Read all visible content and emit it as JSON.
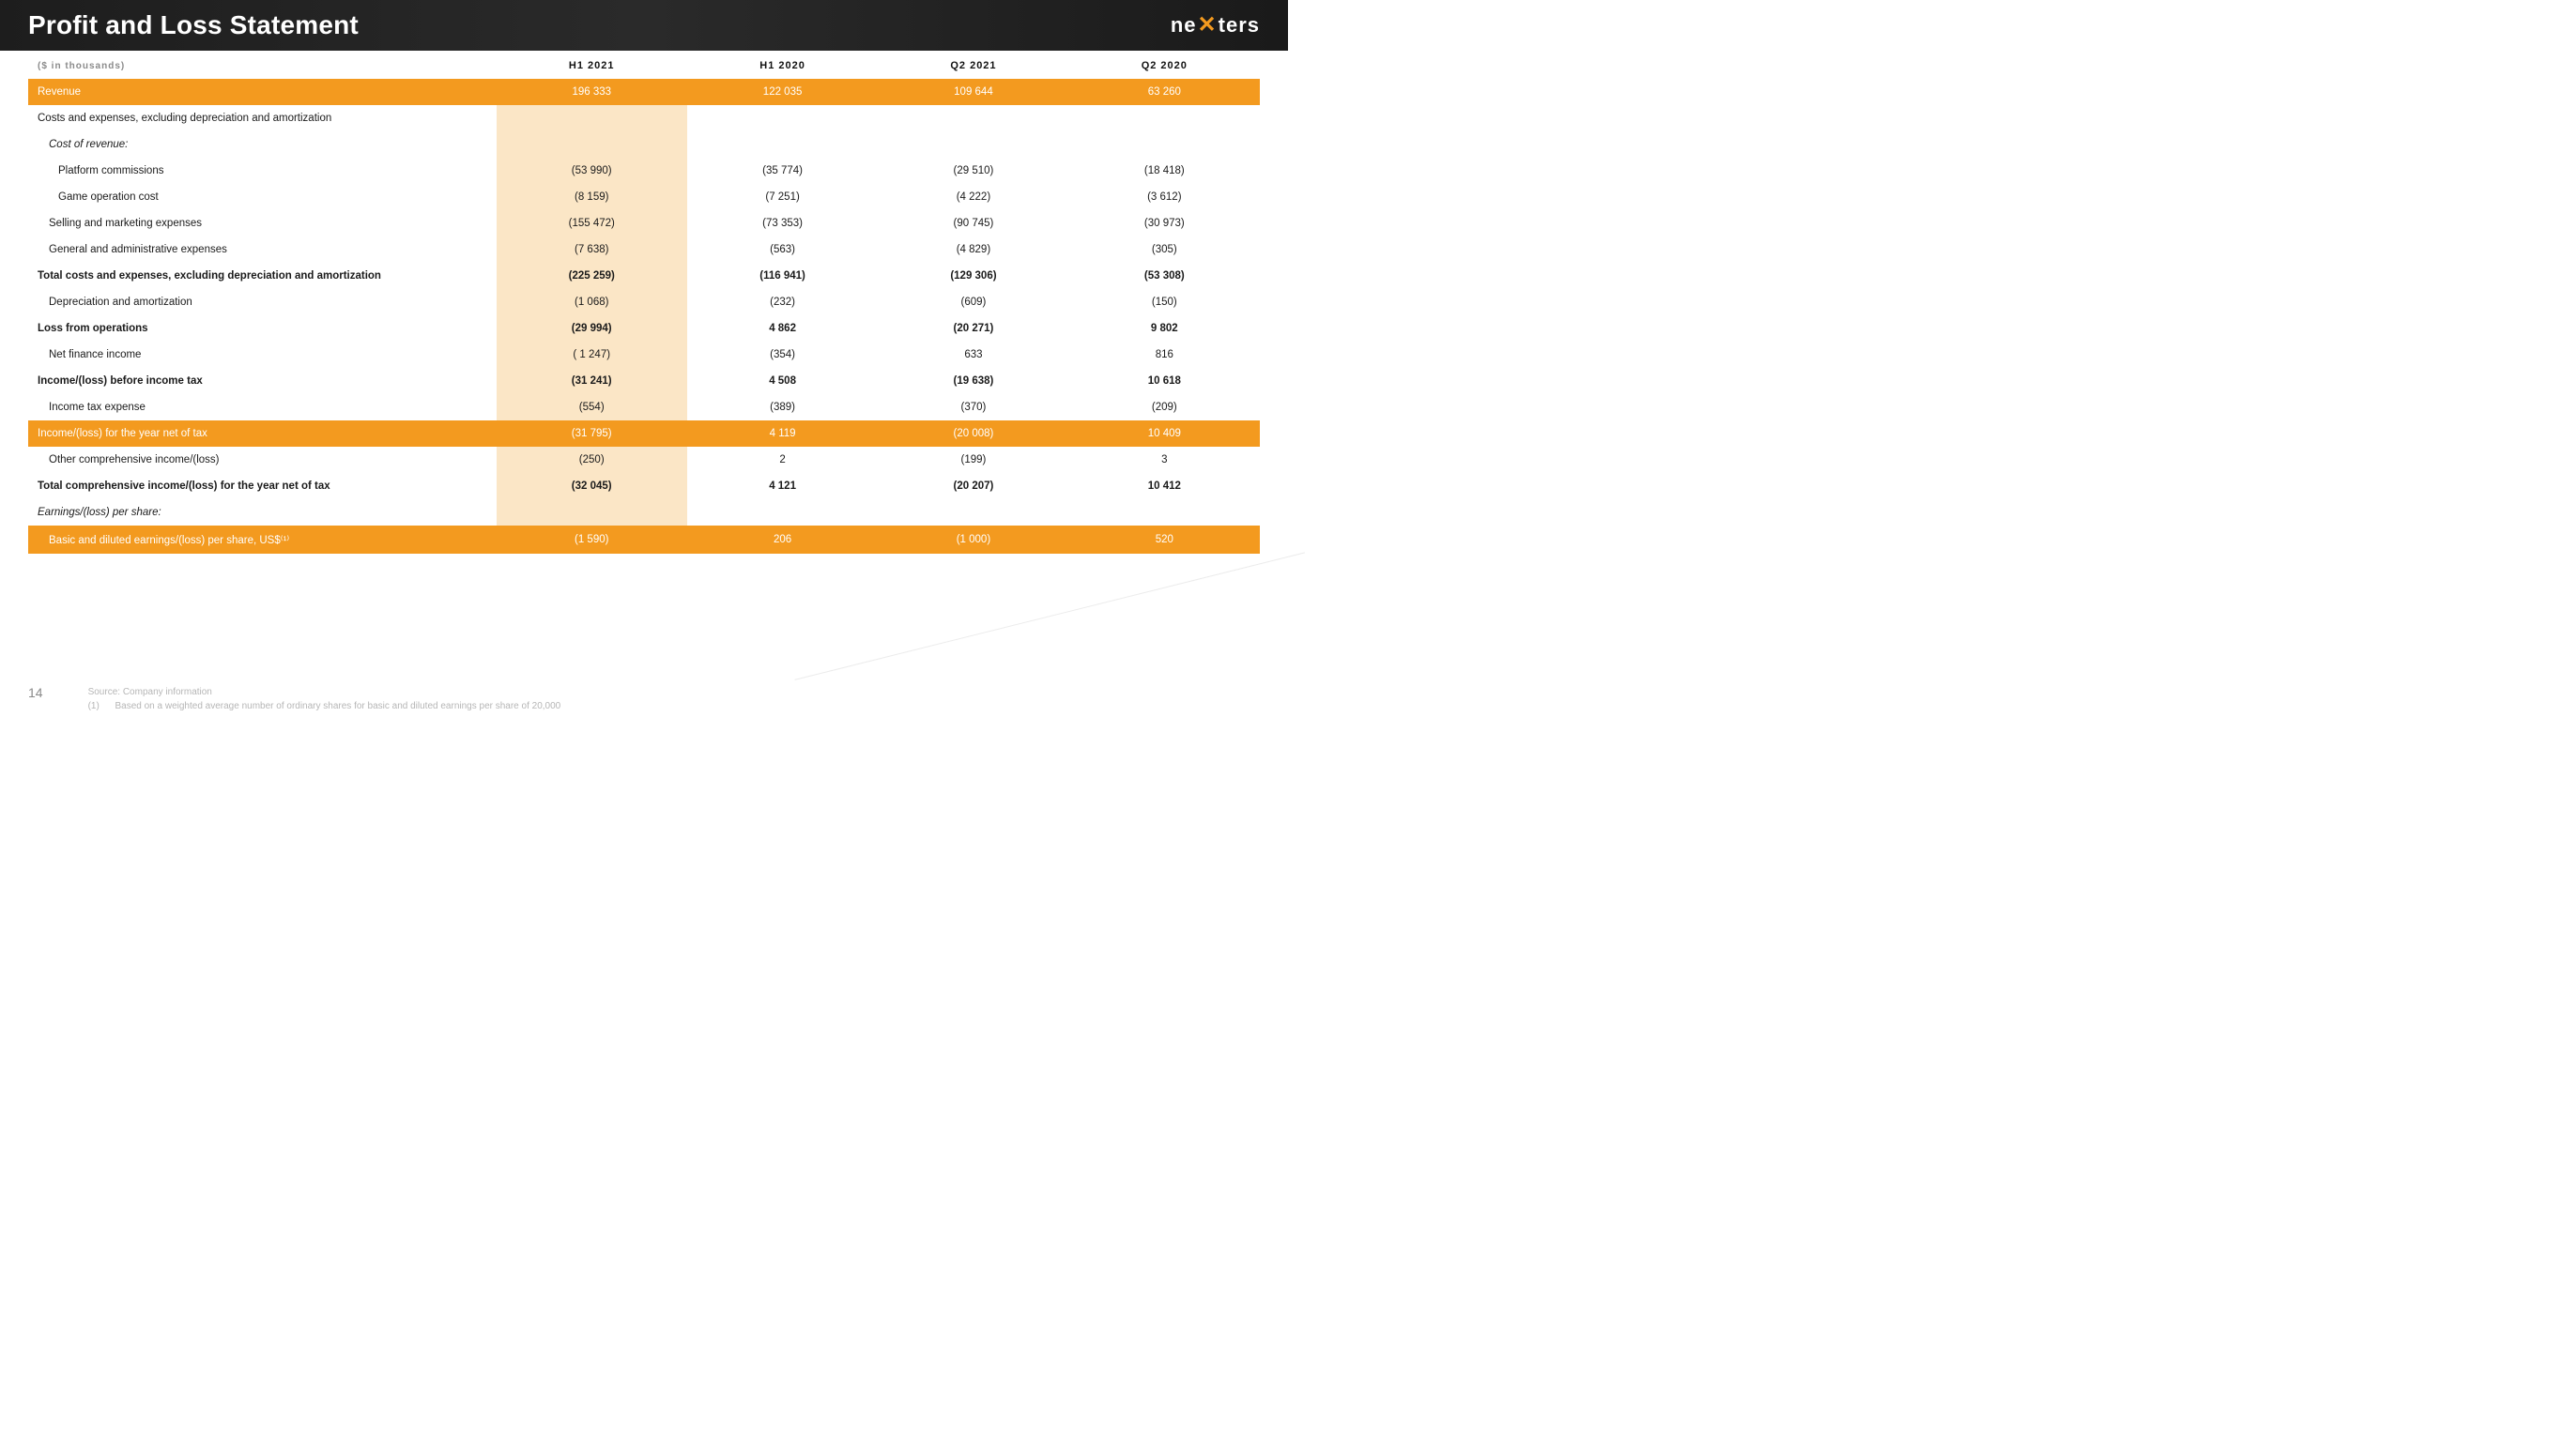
{
  "header": {
    "title": "Profit and Loss Statement",
    "logo_pre": "ne",
    "logo_x": "✕",
    "logo_post": "ters"
  },
  "units_label": "($ in thousands)",
  "columns": [
    "H1 2021",
    "H1 2020",
    "Q2 2021",
    "Q2 2020"
  ],
  "rows": [
    {
      "label": "Revenue",
      "v": [
        "196 333",
        "122 035",
        "109 644",
        "63 260"
      ],
      "style": "hl-orange"
    },
    {
      "label": "Costs and expenses, excluding depreciation and amortization",
      "v": [
        "",
        "",
        "",
        ""
      ],
      "style": "plain"
    },
    {
      "label": "Cost of revenue:",
      "v": [
        "",
        "",
        "",
        ""
      ],
      "style": "italic indent1"
    },
    {
      "label": "Platform commissions",
      "v": [
        "(53 990)",
        "(35 774)",
        "(29 510)",
        "(18 418)"
      ],
      "style": "indent2"
    },
    {
      "label": "Game operation cost",
      "v": [
        "(8 159)",
        "(7 251)",
        "(4 222)",
        "(3 612)"
      ],
      "style": "indent2"
    },
    {
      "label": "Selling and marketing expenses",
      "v": [
        "(155 472)",
        "(73 353)",
        "(90 745)",
        "(30 973)"
      ],
      "style": "indent1"
    },
    {
      "label": "General and administrative expenses",
      "v": [
        "(7 638)",
        "(563)",
        "(4 829)",
        "(305)"
      ],
      "style": "indent1"
    },
    {
      "label": "Total costs and expenses, excluding depreciation and amortization",
      "v": [
        "(225 259)",
        "(116 941)",
        "(129 306)",
        "(53 308)"
      ],
      "style": "bold"
    },
    {
      "label": "Depreciation and amortization",
      "v": [
        "(1 068)",
        "(232)",
        "(609)",
        "(150)"
      ],
      "style": "indent1"
    },
    {
      "label": "Loss from operations",
      "v": [
        "(29 994)",
        "4 862",
        "(20 271)",
        "9 802"
      ],
      "style": "bold"
    },
    {
      "label": "Net finance income",
      "v": [
        "( 1 247)",
        "(354)",
        "633",
        "816"
      ],
      "style": "indent1"
    },
    {
      "label": "Income/(loss) before income tax",
      "v": [
        "(31 241)",
        "4 508",
        "(19 638)",
        "10 618"
      ],
      "style": "bold"
    },
    {
      "label": "Income tax expense",
      "v": [
        "(554)",
        "(389)",
        "(370)",
        "(209)"
      ],
      "style": "indent1"
    },
    {
      "label": "Income/(loss) for the year net of tax",
      "v": [
        "(31 795)",
        "4 119",
        "(20 008)",
        "10 409"
      ],
      "style": "hl-orange"
    },
    {
      "label": "Other comprehensive income/(loss)",
      "v": [
        "(250)",
        "2",
        "(199)",
        "3"
      ],
      "style": "indent1"
    },
    {
      "label": "Total comprehensive income/(loss) for the year net of tax",
      "v": [
        "(32 045)",
        "4 121",
        "(20 207)",
        "10 412"
      ],
      "style": "bold"
    },
    {
      "label": "Earnings/(loss) per share:",
      "v": [
        "",
        "",
        "",
        ""
      ],
      "style": "italic"
    },
    {
      "label": "Basic and diluted earnings/(loss) per share, US$⁽¹⁾",
      "v": [
        "(1 590)",
        "206",
        "(1 000)",
        "520"
      ],
      "style": "hl-orange indent1"
    }
  ],
  "footer": {
    "page": "14",
    "source_label": "Source:",
    "source_text": "Company information",
    "note_ref": "(1)",
    "note_text": "Based on a weighted average number of ordinary shares for basic and diluted earnings per share of 20,000"
  },
  "colors": {
    "accent": "#f39a1f",
    "cream": "#fbe6c6",
    "header_bg": "#1d1d1d",
    "text": "#1a1a1a",
    "muted": "#8a8a8a"
  }
}
